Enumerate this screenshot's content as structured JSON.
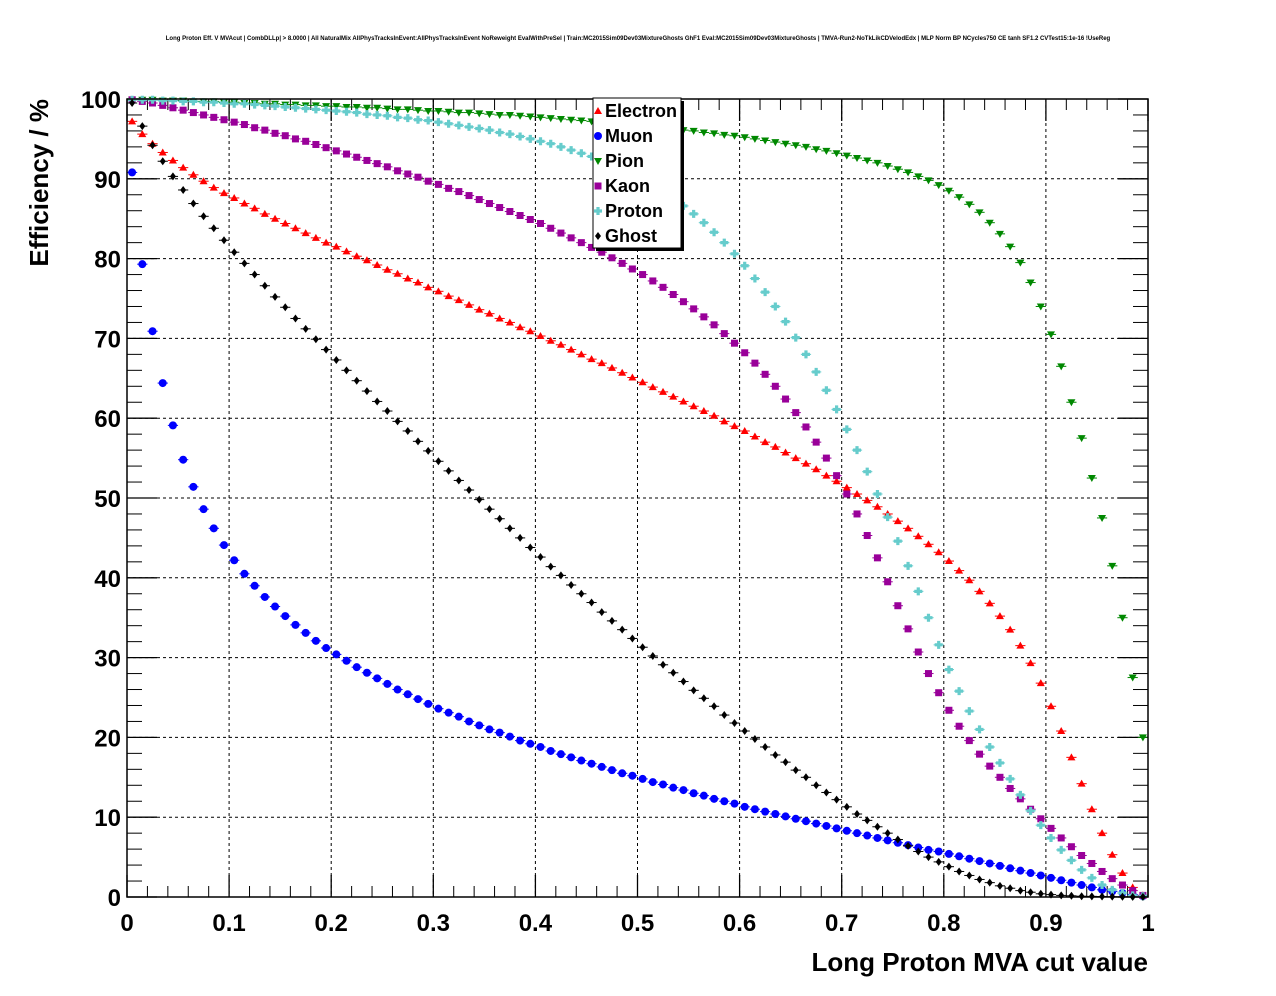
{
  "chart_data": {
    "type": "scatter",
    "title": "Long Proton Eff. V MVAcut | CombDLLp| > 8.0000 | All NaturalMix AllPhysTracksInEvent:AllPhysTracksInEvent NoReweight EvalWithPreSel | Train:MC2015Sim09Dev03MixtureGhosts GhF1 Eval:MC2015Sim09Dev03MixtureGhosts | TMVA-Run2-NoTkLikCDVelodEdx | MLP Norm BP NCycles750 CE tanh SF1.2 CVTest15:1e-16 !UseReg",
    "xlabel": "Long Proton MVA cut value",
    "ylabel": "Efficiency / %",
    "xlim": [
      0,
      1
    ],
    "ylim": [
      0,
      100
    ],
    "xticks": [
      "0",
      "0.1",
      "0.2",
      "0.3",
      "0.4",
      "0.5",
      "0.6",
      "0.7",
      "0.8",
      "0.9",
      "1"
    ],
    "yticks": [
      "0",
      "10",
      "20",
      "30",
      "40",
      "50",
      "60",
      "70",
      "80",
      "90",
      "100"
    ],
    "grid": true,
    "legend_position": "top-center",
    "x": [
      0.005,
      0.015,
      0.025,
      0.035,
      0.045,
      0.055,
      0.065,
      0.075,
      0.085,
      0.095,
      0.105,
      0.115,
      0.125,
      0.135,
      0.145,
      0.155,
      0.165,
      0.175,
      0.185,
      0.195,
      0.205,
      0.215,
      0.225,
      0.235,
      0.245,
      0.255,
      0.265,
      0.275,
      0.285,
      0.295,
      0.305,
      0.315,
      0.325,
      0.335,
      0.345,
      0.355,
      0.365,
      0.375,
      0.385,
      0.395,
      0.405,
      0.415,
      0.425,
      0.435,
      0.445,
      0.455,
      0.465,
      0.475,
      0.485,
      0.495,
      0.505,
      0.515,
      0.525,
      0.535,
      0.545,
      0.555,
      0.565,
      0.575,
      0.585,
      0.595,
      0.605,
      0.615,
      0.625,
      0.635,
      0.645,
      0.655,
      0.665,
      0.675,
      0.685,
      0.695,
      0.705,
      0.715,
      0.725,
      0.735,
      0.745,
      0.755,
      0.765,
      0.775,
      0.785,
      0.795,
      0.805,
      0.815,
      0.825,
      0.835,
      0.845,
      0.855,
      0.865,
      0.875,
      0.885,
      0.895,
      0.905,
      0.915,
      0.925,
      0.935,
      0.945,
      0.955,
      0.965,
      0.975,
      0.985,
      0.995
    ],
    "series": [
      {
        "name": "Electron",
        "marker": "triangle-up",
        "color": "#ff0000",
        "values": [
          97.2,
          95.6,
          94.4,
          93.3,
          92.3,
          91.4,
          90.5,
          89.7,
          88.9,
          88.2,
          87.6,
          86.9,
          86.3,
          85.6,
          85.0,
          84.4,
          83.8,
          83.2,
          82.6,
          82.0,
          81.5,
          80.9,
          80.3,
          79.8,
          79.2,
          78.6,
          78.1,
          77.5,
          77.0,
          76.4,
          75.9,
          75.3,
          74.8,
          74.2,
          73.6,
          73.1,
          72.5,
          72.0,
          71.4,
          70.9,
          70.3,
          69.7,
          69.2,
          68.6,
          68.0,
          67.4,
          66.9,
          66.3,
          65.7,
          65.1,
          64.5,
          63.9,
          63.3,
          62.7,
          62.1,
          61.5,
          60.9,
          60.3,
          59.6,
          59.0,
          58.4,
          57.7,
          57.0,
          56.4,
          55.7,
          55.0,
          54.3,
          53.6,
          52.8,
          52.1,
          51.3,
          50.5,
          49.7,
          48.9,
          48.0,
          47.1,
          46.2,
          45.2,
          44.2,
          43.2,
          42.1,
          40.9,
          39.7,
          38.3,
          36.8,
          35.2,
          33.5,
          31.5,
          29.3,
          26.8,
          23.9,
          20.8,
          17.5,
          14.2,
          11.0,
          8.0,
          5.3,
          3.0,
          1.2,
          0.2
        ]
      },
      {
        "name": "Muon",
        "marker": "circle",
        "color": "#0000ff",
        "values": [
          90.8,
          79.3,
          70.9,
          64.4,
          59.1,
          54.8,
          51.4,
          48.6,
          46.2,
          44.1,
          42.2,
          40.5,
          39.0,
          37.6,
          36.4,
          35.2,
          34.1,
          33.1,
          32.1,
          31.2,
          30.4,
          29.6,
          28.8,
          28.1,
          27.4,
          26.7,
          26.0,
          25.4,
          24.8,
          24.2,
          23.6,
          23.1,
          22.6,
          22.0,
          21.5,
          21.0,
          20.6,
          20.1,
          19.6,
          19.2,
          18.8,
          18.3,
          17.9,
          17.5,
          17.1,
          16.7,
          16.3,
          15.9,
          15.5,
          15.2,
          14.8,
          14.4,
          14.1,
          13.7,
          13.4,
          13.0,
          12.7,
          12.3,
          12.0,
          11.7,
          11.3,
          11.0,
          10.7,
          10.4,
          10.1,
          9.8,
          9.5,
          9.2,
          8.9,
          8.6,
          8.3,
          8.0,
          7.7,
          7.4,
          7.1,
          6.8,
          6.5,
          6.2,
          5.9,
          5.7,
          5.4,
          5.1,
          4.8,
          4.5,
          4.2,
          3.9,
          3.6,
          3.3,
          3.0,
          2.7,
          2.4,
          2.1,
          1.8,
          1.5,
          1.2,
          0.9,
          0.7,
          0.5,
          0.3,
          0.1
        ]
      },
      {
        "name": "Pion",
        "marker": "triangle-down",
        "color": "#008800",
        "values": [
          99.9,
          99.9,
          99.9,
          99.8,
          99.8,
          99.8,
          99.7,
          99.7,
          99.7,
          99.6,
          99.6,
          99.5,
          99.5,
          99.4,
          99.4,
          99.3,
          99.3,
          99.2,
          99.2,
          99.1,
          99.1,
          99.0,
          99.0,
          98.9,
          98.9,
          98.8,
          98.7,
          98.7,
          98.6,
          98.5,
          98.5,
          98.4,
          98.3,
          98.3,
          98.2,
          98.1,
          98.0,
          98.0,
          97.9,
          97.8,
          97.7,
          97.6,
          97.5,
          97.4,
          97.3,
          97.2,
          97.1,
          97.0,
          96.9,
          96.8,
          96.7,
          96.5,
          96.4,
          96.3,
          96.1,
          96.0,
          95.8,
          95.7,
          95.5,
          95.4,
          95.2,
          95.0,
          94.8,
          94.6,
          94.4,
          94.2,
          94.0,
          93.7,
          93.5,
          93.2,
          92.9,
          92.6,
          92.3,
          92.0,
          91.6,
          91.2,
          90.8,
          90.3,
          89.8,
          89.2,
          88.5,
          87.7,
          86.8,
          85.8,
          84.5,
          83.1,
          81.5,
          79.5,
          77.0,
          74.0,
          70.5,
          66.5,
          62.0,
          57.5,
          52.5,
          47.5,
          41.5,
          35.0,
          27.5,
          20.0
        ]
      },
      {
        "name": "Kaon",
        "marker": "square",
        "color": "#990099",
        "values": [
          99.9,
          99.7,
          99.5,
          99.2,
          98.9,
          98.6,
          98.3,
          98.0,
          97.7,
          97.4,
          97.1,
          96.8,
          96.4,
          96.1,
          95.7,
          95.4,
          95.0,
          94.7,
          94.3,
          93.9,
          93.5,
          93.1,
          92.7,
          92.3,
          91.9,
          91.5,
          91.0,
          90.6,
          90.2,
          89.7,
          89.3,
          88.8,
          88.4,
          87.9,
          87.4,
          86.9,
          86.4,
          85.9,
          85.4,
          84.9,
          84.4,
          83.8,
          83.2,
          82.6,
          82.0,
          81.4,
          80.8,
          80.1,
          79.4,
          78.7,
          78.0,
          77.2,
          76.4,
          75.5,
          74.6,
          73.7,
          72.7,
          71.7,
          70.6,
          69.4,
          68.2,
          66.9,
          65.5,
          64.0,
          62.4,
          60.7,
          58.9,
          57.0,
          55.0,
          52.8,
          50.5,
          48.0,
          45.3,
          42.5,
          39.5,
          36.5,
          33.6,
          30.7,
          28.0,
          25.6,
          23.4,
          21.4,
          19.6,
          17.9,
          16.4,
          15.0,
          13.6,
          12.3,
          11.0,
          9.8,
          8.6,
          7.4,
          6.3,
          5.2,
          4.2,
          3.2,
          2.3,
          1.5,
          0.8,
          0.2
        ]
      },
      {
        "name": "Proton",
        "marker": "cross",
        "color": "#66cccc",
        "values": [
          99.9,
          99.9,
          99.9,
          99.8,
          99.8,
          99.7,
          99.7,
          99.6,
          99.6,
          99.5,
          99.4,
          99.4,
          99.3,
          99.2,
          99.1,
          99.0,
          98.9,
          98.8,
          98.7,
          98.6,
          98.5,
          98.4,
          98.3,
          98.1,
          98.0,
          97.9,
          97.7,
          97.6,
          97.4,
          97.3,
          97.1,
          96.9,
          96.7,
          96.5,
          96.3,
          96.1,
          95.8,
          95.6,
          95.3,
          95.0,
          94.7,
          94.4,
          94.0,
          93.6,
          93.2,
          92.8,
          92.3,
          91.8,
          91.2,
          90.6,
          89.9,
          89.2,
          88.4,
          87.5,
          86.6,
          85.6,
          84.5,
          83.3,
          82.0,
          80.6,
          79.1,
          77.5,
          75.8,
          74.0,
          72.1,
          70.1,
          68.0,
          65.8,
          63.5,
          61.1,
          58.6,
          56.0,
          53.3,
          50.5,
          47.6,
          44.6,
          41.5,
          38.3,
          35.0,
          31.6,
          28.5,
          25.8,
          23.3,
          21.0,
          18.8,
          16.8,
          14.8,
          12.8,
          10.8,
          9.0,
          7.4,
          5.9,
          4.6,
          3.4,
          2.4,
          1.5,
          0.9,
          0.5,
          0.2,
          0.1
        ]
      },
      {
        "name": "Ghost",
        "marker": "diamond",
        "color": "#000000",
        "values": [
          99.5,
          96.6,
          94.2,
          92.2,
          90.3,
          88.6,
          86.9,
          85.3,
          83.8,
          82.3,
          80.8,
          79.4,
          78.0,
          76.6,
          75.2,
          73.9,
          72.5,
          71.2,
          69.9,
          68.6,
          67.3,
          66.0,
          64.7,
          63.4,
          62.1,
          60.9,
          59.6,
          58.4,
          57.1,
          55.9,
          54.6,
          53.4,
          52.2,
          51.0,
          49.8,
          48.6,
          47.4,
          46.2,
          45.0,
          43.8,
          42.6,
          41.4,
          40.3,
          39.1,
          38.0,
          36.9,
          35.7,
          34.6,
          33.5,
          32.4,
          31.3,
          30.2,
          29.1,
          28.1,
          27.0,
          25.9,
          24.9,
          23.9,
          22.8,
          21.8,
          20.8,
          19.8,
          18.8,
          17.8,
          16.9,
          15.9,
          15.0,
          14.0,
          13.1,
          12.2,
          11.3,
          10.4,
          9.6,
          8.8,
          8.0,
          7.2,
          6.4,
          5.7,
          5.0,
          4.4,
          3.8,
          3.2,
          2.7,
          2.2,
          1.8,
          1.4,
          1.1,
          0.8,
          0.6,
          0.4,
          0.3,
          0.2,
          0.15,
          0.1,
          0.08,
          0.06,
          0.04,
          0.03,
          0.02,
          0.01
        ]
      }
    ]
  }
}
